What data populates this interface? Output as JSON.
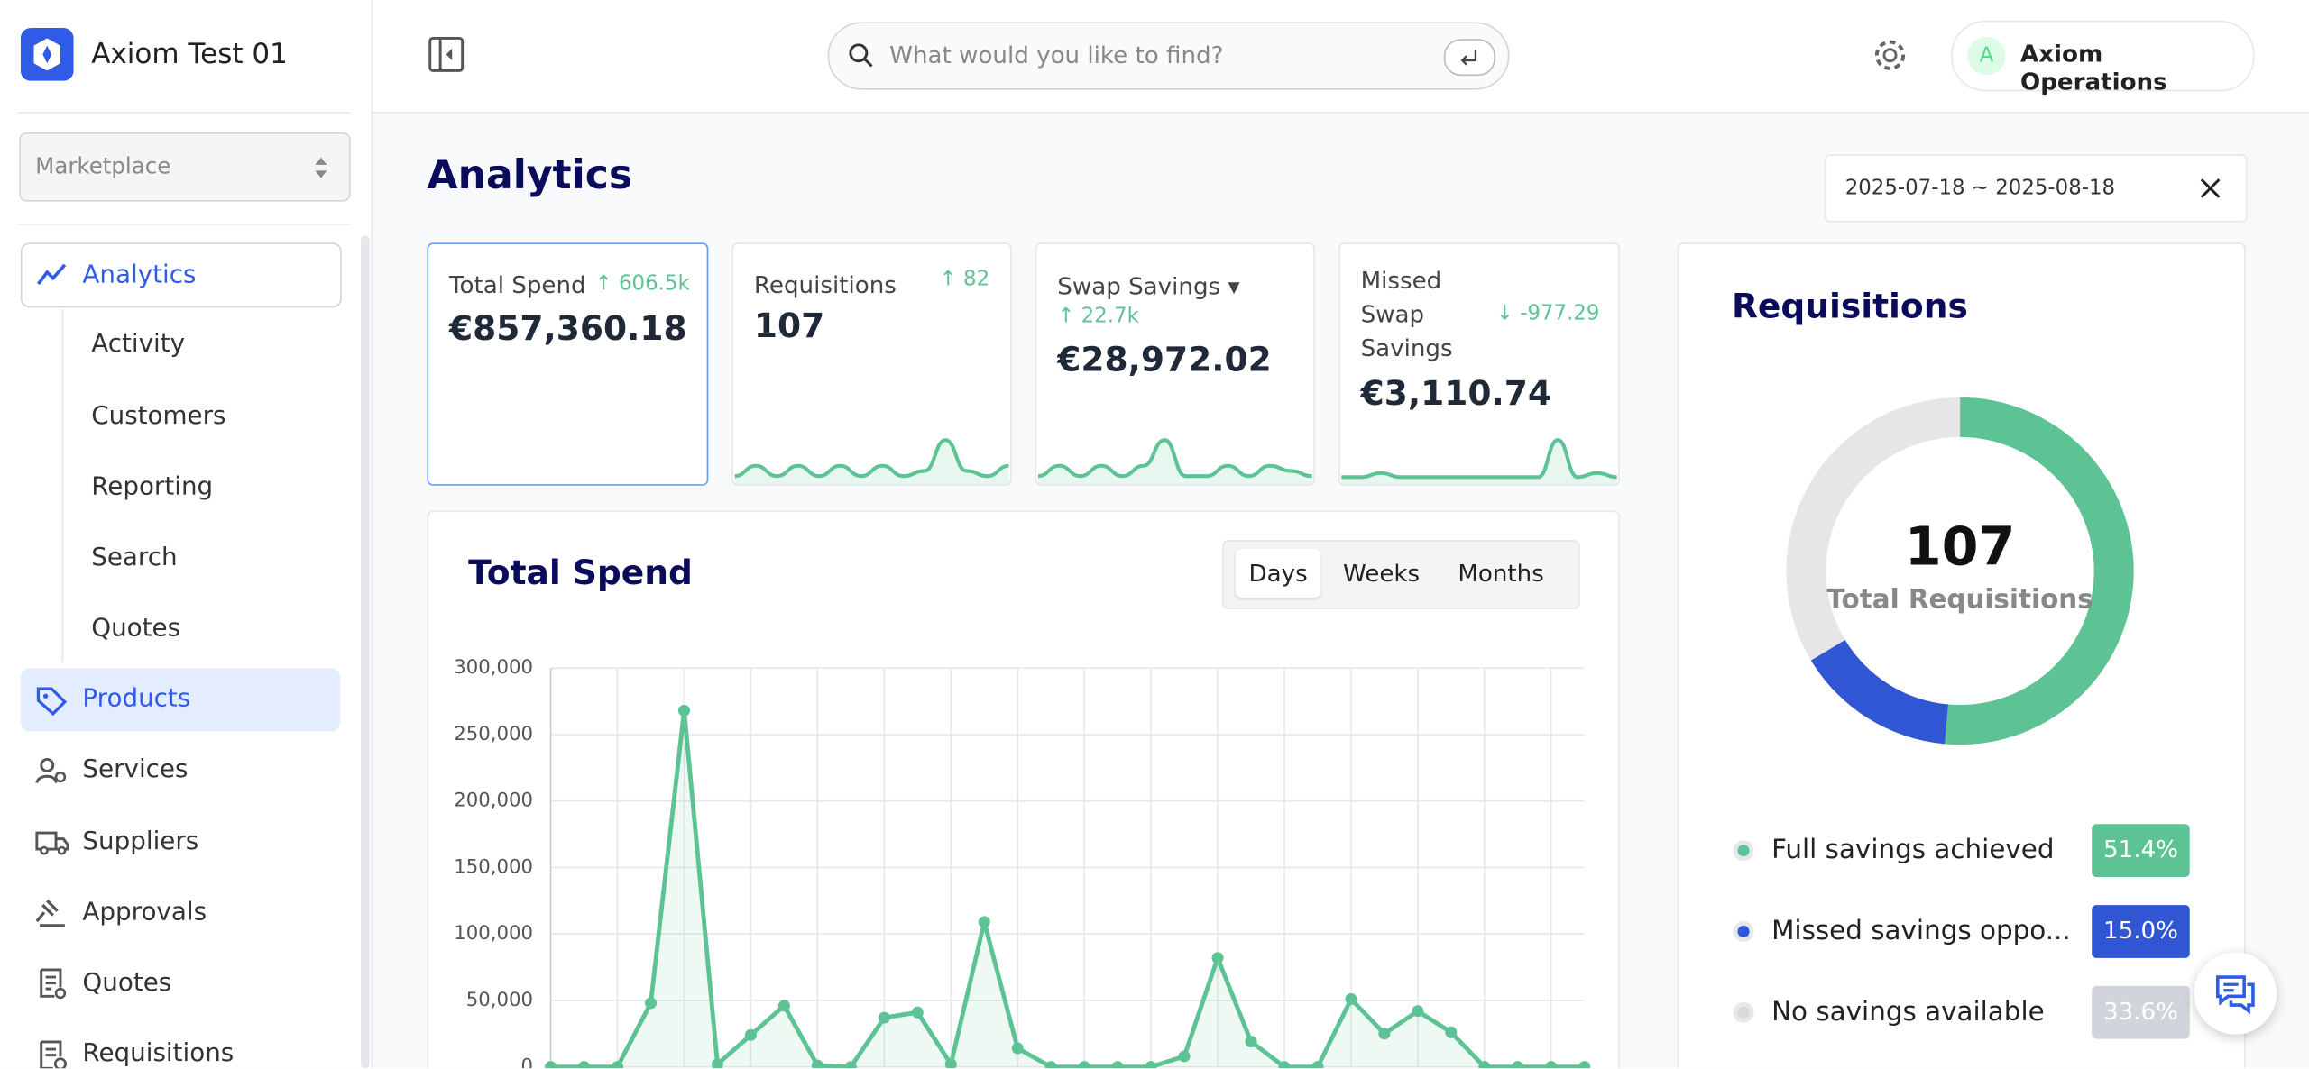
{
  "sidebar": {
    "brand": "Axiom Test 01",
    "select": "Marketplace",
    "nav": [
      {
        "label": "Analytics"
      },
      {
        "label": "Activity"
      },
      {
        "label": "Customers"
      },
      {
        "label": "Reporting"
      },
      {
        "label": "Search"
      },
      {
        "label": "Quotes"
      },
      {
        "label": "Products"
      },
      {
        "label": "Services"
      },
      {
        "label": "Suppliers"
      },
      {
        "label": "Approvals"
      },
      {
        "label": "Quotes"
      },
      {
        "label": "Requisitions"
      }
    ]
  },
  "topbar": {
    "search_placeholder": "What would you like to find?",
    "avatar": "A",
    "user": "Axiom Operations"
  },
  "page": {
    "title": "Analytics",
    "date_range": "2025-07-18 ~ 2025-08-18"
  },
  "kpis": [
    {
      "label": "Total Spend",
      "change": "606.5k",
      "value": "€857,360.18"
    },
    {
      "label": "Requisitions",
      "change": 82,
      "value": 107,
      "color": "#5ec394",
      "sparkline": [
        1,
        3,
        1,
        3,
        1,
        3,
        1,
        3,
        1,
        2,
        8,
        2,
        1,
        3
      ]
    },
    {
      "label": "Swap Savings",
      "change": "22.7k",
      "value": "€28,972.02",
      "color": "#5ec394",
      "sparkline": [
        1,
        3,
        1,
        3,
        1,
        3,
        8,
        1,
        1,
        3,
        1,
        3,
        2,
        1
      ]
    },
    {
      "label": "Missed Swap Savings",
      "change": "-977.29",
      "value": "€3,110.74",
      "color": "#5ec394",
      "sparkline": [
        1,
        1,
        2,
        1,
        1,
        1,
        1,
        1,
        1,
        1,
        1,
        10,
        1,
        2,
        1
      ]
    }
  ],
  "chart_data": [
    {
      "type": "line",
      "title": "Total Spend",
      "options": [
        "Days",
        "Weeks",
        "Months"
      ],
      "selected": 0,
      "color": "#5ec394",
      "values": [
        0,
        0,
        0,
        48000,
        268000,
        2000,
        24000,
        46000,
        1000,
        0,
        37000,
        41000,
        2000,
        109000,
        14000,
        0,
        0,
        0,
        0,
        8000,
        82000,
        19000,
        0,
        0,
        51000,
        25000,
        42000,
        26000,
        0,
        0,
        0,
        0
      ],
      "ylim": [
        0,
        300000
      ],
      "yticks": [
        0,
        {
          "value": 50000,
          "label": "50,000"
        },
        {
          "value": 100000,
          "label": "100,000"
        },
        {
          "value": 150000,
          "label": "150,000"
        },
        {
          "value": 200000,
          "label": "200,000"
        },
        {
          "value": 250000,
          "label": "250,000"
        },
        {
          "value": 300000,
          "label": "300,000"
        }
      ],
      "grid": true
    },
    {
      "type": "donut",
      "title": "Requisitions",
      "center_value": 107,
      "center_label": "Total Requisitions",
      "categories": [
        "Full savings achieved",
        "Missed savings oppo...",
        "No savings available"
      ],
      "values": [
        51.4,
        15.0,
        33.6
      ],
      "value_labels": [
        "51.4%",
        "15.0%",
        "33.6%"
      ],
      "colors": [
        "#5ec394",
        "#3056d3",
        "#e6e6e6"
      ],
      "badge_colors": [
        "#5ec394",
        "#3056d3",
        "#d1d5db"
      ]
    }
  ]
}
